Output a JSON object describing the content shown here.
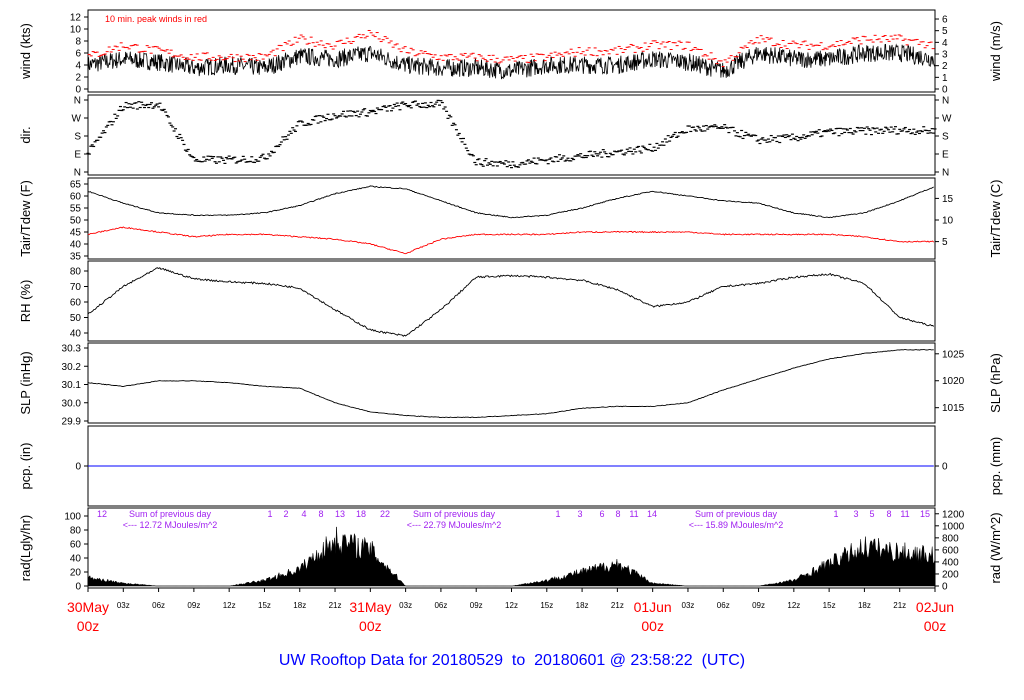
{
  "title": "UW Rooftop Data for 20180529  to  20180601 @ 23:58:22  (UTC)",
  "colors": {
    "series": "#000000",
    "dewpoint": "#ff0000",
    "gust": "#ff0000",
    "precip": "#0000ff",
    "annotation": "#a020f0",
    "date_labels": "#ff0000",
    "title": "#0000ff"
  },
  "x_axis": {
    "day_labels": [
      {
        "date": "30May",
        "hour": "00z"
      },
      {
        "date": "31May",
        "hour": "00z"
      },
      {
        "date": "01Jun",
        "hour": "00z"
      },
      {
        "date": "02Jun",
        "hour": "00z"
      }
    ],
    "hour_labels": [
      "03z",
      "06z",
      "09z",
      "12z",
      "15z",
      "18z",
      "21z"
    ]
  },
  "chart_data": [
    {
      "type": "line",
      "panel": "wind",
      "ylabel": "wind (kts)",
      "ylabel_right": "wind (m/s)",
      "annotation": "10 min. peak winds in red",
      "ylim": [
        0,
        12
      ],
      "yticks": [
        "0",
        "2",
        "4",
        "6",
        "8",
        "10",
        "12"
      ],
      "yticks_right": [
        "0",
        "1",
        "2",
        "3",
        "4",
        "5",
        "6"
      ],
      "x": [
        "2018-05-30T00Z",
        "03Z",
        "06Z",
        "09Z",
        "12Z",
        "15Z",
        "18Z",
        "21Z",
        "2018-05-31T00Z",
        "03Z",
        "06Z",
        "09Z",
        "12Z",
        "15Z",
        "18Z",
        "21Z",
        "2018-06-01T00Z",
        "03Z",
        "06Z",
        "09Z",
        "12Z",
        "15Z",
        "18Z",
        "21Z",
        "2018-06-02T00Z"
      ],
      "values": [
        4,
        5,
        4.5,
        3.5,
        4,
        3.5,
        5.5,
        5,
        6,
        4,
        3.5,
        3.5,
        3,
        4,
        4,
        4,
        5,
        4.5,
        3,
        6,
        5,
        5,
        6,
        6,
        5
      ],
      "gust_values": [
        5,
        7,
        6,
        5,
        5,
        5,
        8,
        7,
        9,
        6,
        5,
        5,
        4.5,
        5,
        6,
        6,
        7,
        7,
        4,
        8,
        7,
        7,
        8,
        8,
        7
      ]
    },
    {
      "type": "scatter",
      "panel": "dir",
      "ylabel": "dir.",
      "ylim": [
        0,
        360
      ],
      "yticks": [
        "N",
        "E",
        "S",
        "W",
        "N"
      ],
      "values": [
        90,
        330,
        340,
        60,
        60,
        70,
        240,
        285,
        300,
        335,
        340,
        50,
        40,
        60,
        80,
        100,
        120,
        215,
        220,
        160,
        170,
        200,
        205,
        210,
        205
      ]
    },
    {
      "type": "line",
      "panel": "temp",
      "ylabel": "Tair/Tdew (F)",
      "ylabel_right": "Tair/Tdew (C)",
      "ylim": [
        35,
        65
      ],
      "yticks": [
        "35",
        "40",
        "45",
        "50",
        "55",
        "60",
        "65"
      ],
      "yticks_right": [
        "5",
        "10",
        "15"
      ],
      "series": [
        {
          "values": [
            62,
            57,
            53,
            52,
            52,
            53,
            56,
            61,
            64,
            63,
            58,
            53,
            51,
            52,
            55,
            59,
            62,
            60,
            58,
            57,
            53,
            51,
            53,
            58,
            64
          ]
        },
        {
          "values": [
            44,
            47,
            45,
            43,
            44,
            44,
            43,
            42,
            40,
            36,
            42,
            44,
            44,
            44,
            45,
            45,
            45,
            45,
            44,
            44,
            44,
            44,
            43,
            41,
            41
          ]
        }
      ]
    },
    {
      "type": "line",
      "panel": "rh",
      "ylabel": "RH (%)",
      "ylim": [
        35,
        85
      ],
      "yticks": [
        "40",
        "50",
        "60",
        "70",
        "80"
      ],
      "values": [
        52,
        70,
        82,
        75,
        73,
        72,
        69,
        55,
        42,
        38,
        55,
        76,
        77,
        76,
        74,
        68,
        57,
        60,
        70,
        72,
        76,
        78,
        72,
        50,
        44
      ]
    },
    {
      "type": "line",
      "panel": "slp",
      "ylabel": "SLP (inHg)",
      "ylabel_right": "SLP (hPa)",
      "ylim": [
        29.9,
        30.3
      ],
      "yticks": [
        "29.9",
        "30.0",
        "30.1",
        "30.2",
        "30.3"
      ],
      "yticks_right": [
        "1015",
        "1020",
        "1025"
      ],
      "values": [
        30.11,
        30.09,
        30.12,
        30.12,
        30.11,
        30.09,
        30.08,
        30.0,
        29.95,
        29.93,
        29.92,
        29.92,
        29.93,
        29.94,
        29.97,
        29.98,
        29.98,
        30.0,
        30.07,
        30.13,
        30.19,
        30.24,
        30.27,
        30.29,
        30.29
      ]
    },
    {
      "type": "line",
      "panel": "pcp",
      "ylabel": "pcp. (in)",
      "ylabel_right": "pcp. (mm)",
      "yticks": [
        "0"
      ],
      "yticks_right": [
        "0"
      ],
      "values": [
        0,
        0,
        0,
        0,
        0,
        0,
        0,
        0,
        0,
        0,
        0,
        0,
        0,
        0,
        0,
        0,
        0,
        0,
        0,
        0,
        0,
        0,
        0,
        0,
        0
      ]
    },
    {
      "type": "area",
      "panel": "rad",
      "ylabel": "rad(Lgly/hr)",
      "ylabel_right": "rad (W/m^2)",
      "ylim": [
        0,
        100
      ],
      "yticks": [
        "0",
        "20",
        "40",
        "60",
        "80",
        "100"
      ],
      "yticks_right": [
        "0",
        "200",
        "400",
        "600",
        "800",
        "1000",
        "1200"
      ],
      "values": [
        15,
        5,
        0,
        0,
        0,
        10,
        30,
        82,
        65,
        0,
        0,
        0,
        0,
        10,
        25,
        40,
        5,
        0,
        0,
        0,
        10,
        40,
        70,
        60,
        55
      ],
      "hour_labels": [
        [
          "12"
        ],
        [
          "1",
          "2",
          "4",
          "8",
          "13",
          "18",
          "22"
        ],
        [
          "1",
          "3",
          "6",
          "8",
          "11",
          "14"
        ],
        [
          "1",
          "3",
          "5",
          "8",
          "11",
          "15"
        ]
      ],
      "daily_sums": [
        {
          "title": "Sum of previous day",
          "value": "<--- 12.72 MJoules/m^2"
        },
        {
          "title": "Sum of previous day",
          "value": "<--- 22.79 MJoules/m^2"
        },
        {
          "title": "Sum of previous day",
          "value": "<--- 15.89 MJoules/m^2"
        }
      ]
    }
  ]
}
